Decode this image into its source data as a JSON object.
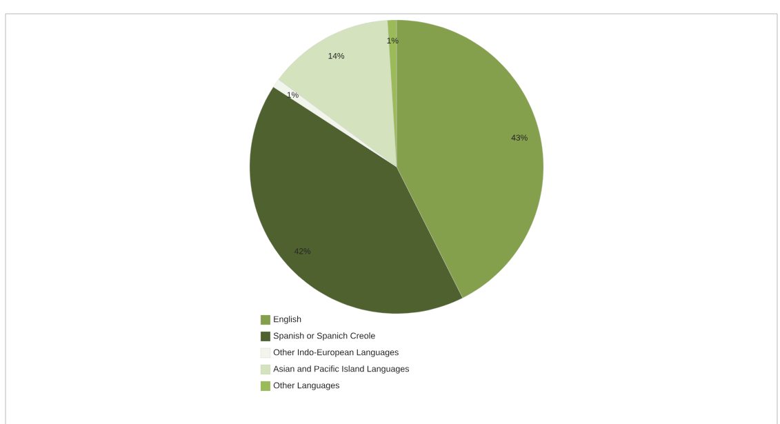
{
  "chart_data": {
    "type": "pie",
    "categories": [
      "English",
      "Spanish or Spanich Creole",
      "Other Indo-European Languages",
      "Asian and Pacific Island Languages",
      "Other Languages"
    ],
    "values": [
      43,
      42,
      1,
      14,
      1
    ],
    "colors": [
      "#84a04d",
      "#4f612f",
      "#f2f5ec",
      "#d4e2bd",
      "#9bbb59"
    ],
    "value_labels": [
      "43%",
      "42%",
      "1%",
      "14%",
      "1%"
    ],
    "legend": "bottom"
  }
}
